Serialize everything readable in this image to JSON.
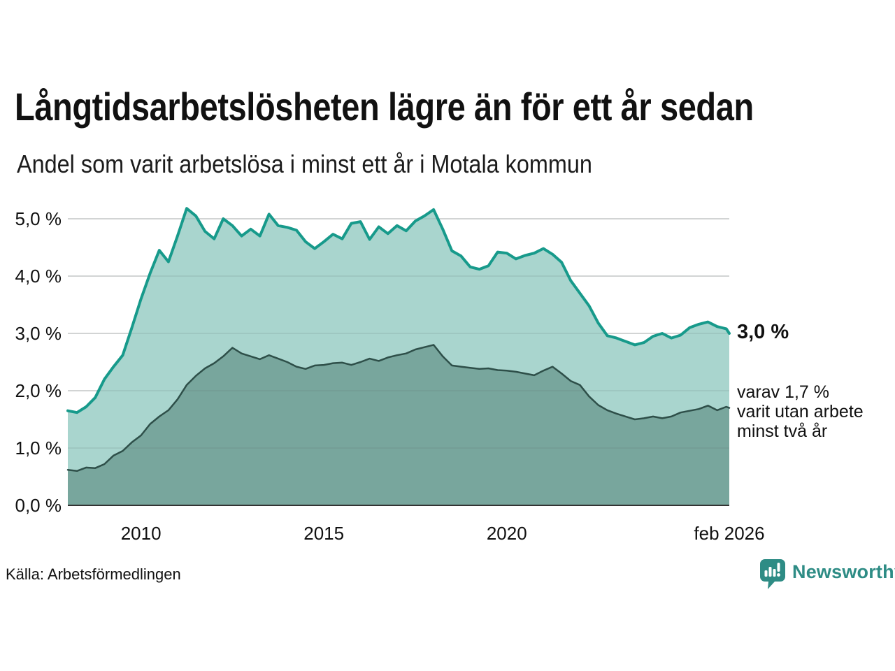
{
  "header": {
    "title": "Långtidsarbetslösheten lägre än för ett år sedan",
    "subtitle": "Andel som varit arbetslösa i minst ett år i Motala kommun"
  },
  "annotations": {
    "end_value": "3,0 %",
    "note_lines": [
      "varav 1,7 %",
      "varit utan arbete",
      "minst två år"
    ]
  },
  "source": {
    "label": "Källa: Arbetsförmedlingen"
  },
  "branding": {
    "name": "Newsworthy",
    "color": "#2e8c85"
  },
  "colors": {
    "grid": "#d9d9d9",
    "axis": "#333333",
    "text": "#111111"
  },
  "chart_data": {
    "type": "area",
    "title": "Långtidsarbetslösheten lägre än för ett år sedan",
    "subtitle": "Andel som varit arbetslösa i minst ett år i Motala kommun",
    "x_unit": "decimal_year",
    "x_range": [
      2008.0,
      2026.083
    ],
    "ylim": [
      0,
      5.4
    ],
    "grid": "horizontal",
    "legend_position": "direct-labels-right",
    "yticks": [
      {
        "v": 0,
        "label": "0,0 %"
      },
      {
        "v": 1,
        "label": "1,0 %"
      },
      {
        "v": 2,
        "label": "2,0 %"
      },
      {
        "v": 3,
        "label": "3,0 %"
      },
      {
        "v": 4,
        "label": "4,0 %"
      },
      {
        "v": 5,
        "label": "5,0 %"
      }
    ],
    "xticks": [
      {
        "v": 2010,
        "label": "2010"
      },
      {
        "v": 2015,
        "label": "2015"
      },
      {
        "v": 2020,
        "label": "2020"
      },
      {
        "v": 2026.083,
        "label": "feb 2026"
      }
    ],
    "x": [
      2008,
      2008.25,
      2008.5,
      2008.75,
      2009,
      2009.25,
      2009.5,
      2009.75,
      2010,
      2010.25,
      2010.5,
      2010.75,
      2011,
      2011.25,
      2011.5,
      2011.75,
      2012,
      2012.25,
      2012.5,
      2012.75,
      2013,
      2013.25,
      2013.5,
      2013.75,
      2014,
      2014.25,
      2014.5,
      2014.75,
      2015,
      2015.25,
      2015.5,
      2015.75,
      2016,
      2016.25,
      2016.5,
      2016.75,
      2017,
      2017.25,
      2017.5,
      2017.75,
      2018,
      2018.25,
      2018.5,
      2018.75,
      2019,
      2019.25,
      2019.5,
      2019.75,
      2020,
      2020.25,
      2020.5,
      2020.75,
      2021,
      2021.25,
      2021.5,
      2021.75,
      2022,
      2022.25,
      2022.5,
      2022.75,
      2023,
      2023.25,
      2023.5,
      2023.75,
      2024,
      2024.25,
      2024.5,
      2024.75,
      2025,
      2025.25,
      2025.5,
      2025.75,
      2026,
      2026.083
    ],
    "series": [
      {
        "name": "Arbetslösa minst ett år",
        "end_value_pct": 3.0,
        "line_color": "#179a8b",
        "fill_color": "#a9d5ce",
        "line_width": 4,
        "values": [
          1.65,
          1.62,
          1.72,
          1.88,
          2.2,
          2.42,
          2.62,
          3.1,
          3.6,
          4.05,
          4.45,
          4.25,
          4.7,
          5.18,
          5.05,
          4.78,
          4.65,
          5.0,
          4.88,
          4.7,
          4.82,
          4.7,
          5.08,
          4.88,
          4.85,
          4.8,
          4.6,
          4.48,
          4.6,
          4.73,
          4.65,
          4.92,
          4.95,
          4.64,
          4.86,
          4.74,
          4.88,
          4.79,
          4.96,
          5.05,
          5.16,
          4.82,
          4.44,
          4.35,
          4.16,
          4.12,
          4.18,
          4.42,
          4.4,
          4.3,
          4.36,
          4.4,
          4.48,
          4.38,
          4.24,
          3.92,
          3.7,
          3.48,
          3.18,
          2.96,
          2.92,
          2.86,
          2.8,
          2.84,
          2.95,
          3.0,
          2.92,
          2.97,
          3.1,
          3.16,
          3.2,
          3.12,
          3.08,
          3.0
        ]
      },
      {
        "name": "Varav utan arbete minst två år",
        "end_value_pct": 1.7,
        "line_color": "#2e4f49",
        "fill_color": "#78a69d",
        "line_width": 2.5,
        "values": [
          0.62,
          0.6,
          0.66,
          0.65,
          0.72,
          0.87,
          0.95,
          1.1,
          1.22,
          1.42,
          1.55,
          1.66,
          1.85,
          2.1,
          2.26,
          2.39,
          2.48,
          2.6,
          2.75,
          2.65,
          2.6,
          2.55,
          2.62,
          2.56,
          2.5,
          2.42,
          2.38,
          2.44,
          2.45,
          2.48,
          2.49,
          2.45,
          2.5,
          2.56,
          2.52,
          2.58,
          2.62,
          2.65,
          2.72,
          2.76,
          2.8,
          2.6,
          2.44,
          2.42,
          2.4,
          2.38,
          2.39,
          2.36,
          2.35,
          2.33,
          2.3,
          2.27,
          2.35,
          2.42,
          2.3,
          2.17,
          2.1,
          1.9,
          1.75,
          1.66,
          1.6,
          1.55,
          1.5,
          1.52,
          1.55,
          1.52,
          1.55,
          1.62,
          1.65,
          1.68,
          1.74,
          1.66,
          1.72,
          1.7
        ]
      }
    ]
  }
}
